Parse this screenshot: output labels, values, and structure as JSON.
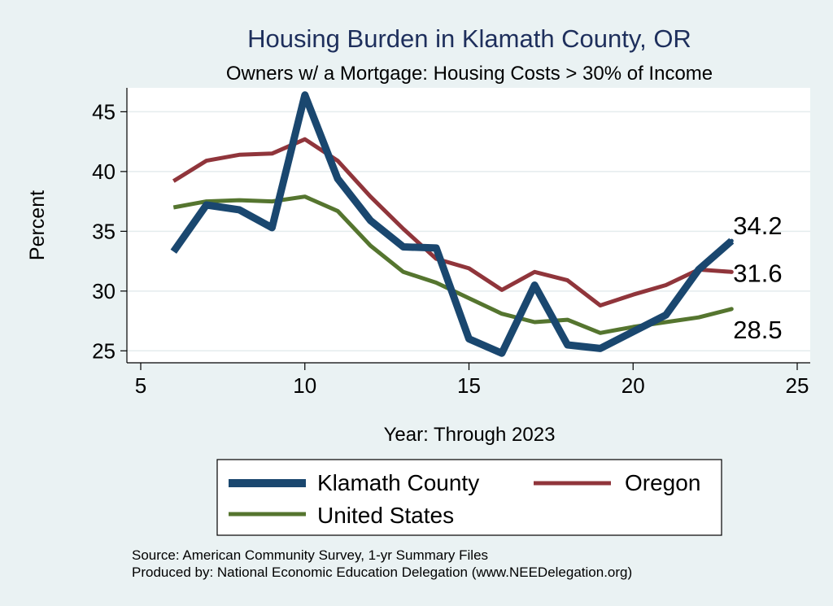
{
  "chart_data": {
    "type": "line",
    "title": "Housing Burden in Klamath County, OR",
    "subtitle": "Owners w/ a Mortgage: Housing Costs > 30% of Income",
    "xlabel": "Year: Through 2023",
    "ylabel": "Percent",
    "xlim": [
      5,
      25
    ],
    "ylim": [
      24,
      47
    ],
    "xticks": [
      "5",
      "10",
      "15",
      "20",
      "25"
    ],
    "yticks": [
      "25",
      "30",
      "35",
      "40",
      "45"
    ],
    "grid": true,
    "legend_position": "bottom",
    "series": [
      {
        "name": "Klamath County",
        "color": "#1a476f",
        "x": [
          6,
          7,
          8,
          9,
          10,
          11,
          12,
          13,
          14,
          15,
          16,
          17,
          18,
          19,
          20,
          21,
          22,
          23
        ],
        "values": [
          33.3,
          37.2,
          36.8,
          35.3,
          46.4,
          39.4,
          35.9,
          33.7,
          33.6,
          26.0,
          24.8,
          30.5,
          25.5,
          25.2,
          26.6,
          28.0,
          31.8,
          34.2
        ],
        "end_label": "34.2"
      },
      {
        "name": "Oregon",
        "color": "#90353b",
        "x": [
          6,
          7,
          8,
          9,
          10,
          11,
          12,
          13,
          14,
          15,
          16,
          17,
          18,
          19,
          20,
          21,
          22,
          23
        ],
        "values": [
          39.2,
          40.9,
          41.4,
          41.5,
          42.7,
          40.9,
          37.9,
          35.2,
          32.7,
          31.9,
          30.1,
          31.6,
          30.9,
          28.8,
          29.7,
          30.5,
          31.8,
          31.6
        ],
        "end_label": "31.6"
      },
      {
        "name": "United States",
        "color": "#55752f",
        "x": [
          6,
          7,
          8,
          9,
          10,
          11,
          12,
          13,
          14,
          15,
          16,
          17,
          18,
          19,
          20,
          21,
          22,
          23
        ],
        "values": [
          37.0,
          37.5,
          37.6,
          37.5,
          37.9,
          36.7,
          33.8,
          31.6,
          30.7,
          29.4,
          28.1,
          27.4,
          27.6,
          26.5,
          27.0,
          27.4,
          27.8,
          28.5
        ],
        "end_label": "28.5"
      }
    ],
    "notes": [
      "Source: American Community Survey, 1-yr Summary Files",
      "Produced by: National Economic Education Delegation (www.NEEDelegation.org)"
    ]
  }
}
